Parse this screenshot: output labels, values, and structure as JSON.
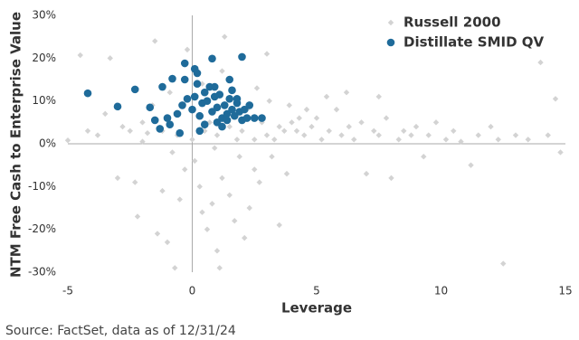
{
  "chart_data": {
    "type": "scatter",
    "xlabel": "Leverage",
    "ylabel": "NTM Free Cash to Enterprise Value",
    "source": "Source: FactSet, data as of 12/31/24",
    "xlim": [
      -5,
      15
    ],
    "ylim": [
      -30,
      30
    ],
    "xticks": [
      -5,
      0,
      5,
      10,
      15
    ],
    "yticks": [
      {
        "value": -30,
        "label": "-30%"
      },
      {
        "value": -20,
        "label": "-20%"
      },
      {
        "value": -10,
        "label": "-10%"
      },
      {
        "value": 0,
        "label": "0%"
      },
      {
        "value": 10,
        "label": "10%"
      },
      {
        "value": 20,
        "label": "20%"
      },
      {
        "value": 30,
        "label": "30%"
      }
    ],
    "series": [
      {
        "name": "Russell 2000",
        "color": "#d3d3d3",
        "marker": "diamond",
        "x": [
          -5,
          -4.5,
          -4.2,
          -3.8,
          -3.5,
          -3.3,
          -3,
          -2.8,
          -2.5,
          -2.3,
          -2.2,
          -2,
          -1.8,
          -1.5,
          -1.4,
          -1.2,
          -1,
          -0.8,
          -0.7,
          -0.5,
          -0.3,
          -0.2,
          0.1,
          0.3,
          0.4,
          0.6,
          0.8,
          1,
          1.1,
          1.2,
          1.3,
          1.5,
          1.7,
          1.9,
          2.1,
          2.3,
          2.5,
          2.7,
          3,
          3.2,
          3.5,
          3.8,
          4,
          4.2,
          4.5,
          4.8,
          5,
          5.2,
          5.5,
          5.8,
          6,
          6.3,
          6.5,
          6.8,
          7,
          7.3,
          7.5,
          7.8,
          8,
          8.3,
          8.5,
          8.8,
          9,
          9.3,
          9.5,
          9.8,
          10.2,
          10.5,
          10.8,
          11.2,
          11.5,
          12,
          12.3,
          12.5,
          13,
          13.5,
          14,
          14.3,
          14.6,
          14.8,
          0.5,
          1,
          1.5,
          2,
          2.5,
          3,
          3.5,
          0,
          0.7,
          1.8,
          2.8,
          3.3,
          3.7,
          4.3,
          -0.6,
          -1.2,
          -2,
          -1.6,
          0.9,
          2.2,
          -0.9,
          0.4,
          1.2,
          2.6,
          3.1,
          3.9,
          4.6,
          5.4,
          6.2,
          7.5
        ],
        "values": [
          0.8,
          20.7,
          3,
          2,
          7,
          20,
          -8,
          4,
          3,
          -9,
          -17,
          5,
          2.5,
          24,
          -21,
          -11,
          -23,
          -2,
          -29,
          -13,
          -6,
          22,
          -4,
          -10,
          -16,
          -20,
          -14,
          -25,
          -29,
          -8,
          25,
          -12,
          -18,
          -3,
          -22,
          -15,
          -6,
          -9,
          21,
          -3,
          -19,
          -7,
          5,
          3,
          2,
          4,
          6,
          1,
          3,
          8,
          2,
          4,
          1,
          5,
          -7,
          3,
          2,
          6,
          -8,
          1,
          3,
          2,
          4,
          -3,
          2,
          5,
          1,
          3,
          0.5,
          -5,
          2,
          4,
          1,
          -28,
          2,
          1,
          19,
          2,
          10.5,
          -2,
          3,
          2,
          4,
          3,
          1,
          2,
          4,
          1,
          5,
          1,
          5,
          1,
          3,
          6,
          2,
          3,
          0.5,
          9,
          -1,
          8,
          12,
          14,
          17,
          13,
          10,
          9,
          8,
          11,
          12,
          11
        ]
      },
      {
        "name": "Distillate SMID QV",
        "color": "#1f6b9a",
        "marker": "circle",
        "x": [
          -4.2,
          -3.0,
          -2.3,
          -1.2,
          -0.8,
          -0.3,
          0.1,
          0.2,
          0.8,
          2.0,
          1.5,
          0.7,
          0.9,
          -0.3,
          -1.5,
          -1.7,
          -1.3,
          -1.0,
          -0.9,
          -0.6,
          -0.4,
          -0.2,
          0.0,
          0.1,
          0.3,
          0.4,
          0.5,
          0.6,
          0.8,
          1.0,
          1.1,
          1.2,
          1.3,
          1.4,
          1.5,
          1.6,
          1.7,
          1.8,
          1.9,
          2.0,
          2.1,
          2.2,
          2.3,
          2.5,
          2.8,
          0.5,
          0.9,
          1.2,
          1.6,
          0.3,
          -0.5,
          1.0,
          1.4,
          1.8,
          0.2
        ],
        "values": [
          11.8,
          8.7,
          12.7,
          13.3,
          15.2,
          18.8,
          17.5,
          16.5,
          19.9,
          20.3,
          15.0,
          13.3,
          13.3,
          15.0,
          5.5,
          8.5,
          3.5,
          6.0,
          4.5,
          7.0,
          9.0,
          10.5,
          8.0,
          11.0,
          6.5,
          9.5,
          4.5,
          10.0,
          7.5,
          8.5,
          11.5,
          6.0,
          9.0,
          7.0,
          10.5,
          8.0,
          6.5,
          9.5,
          7.5,
          5.5,
          8.0,
          6.0,
          9.0,
          6.0,
          6.0,
          12.0,
          11.0,
          4.0,
          12.5,
          3.0,
          2.5,
          5.0,
          5.5,
          10.5,
          14.0
        ]
      }
    ]
  }
}
